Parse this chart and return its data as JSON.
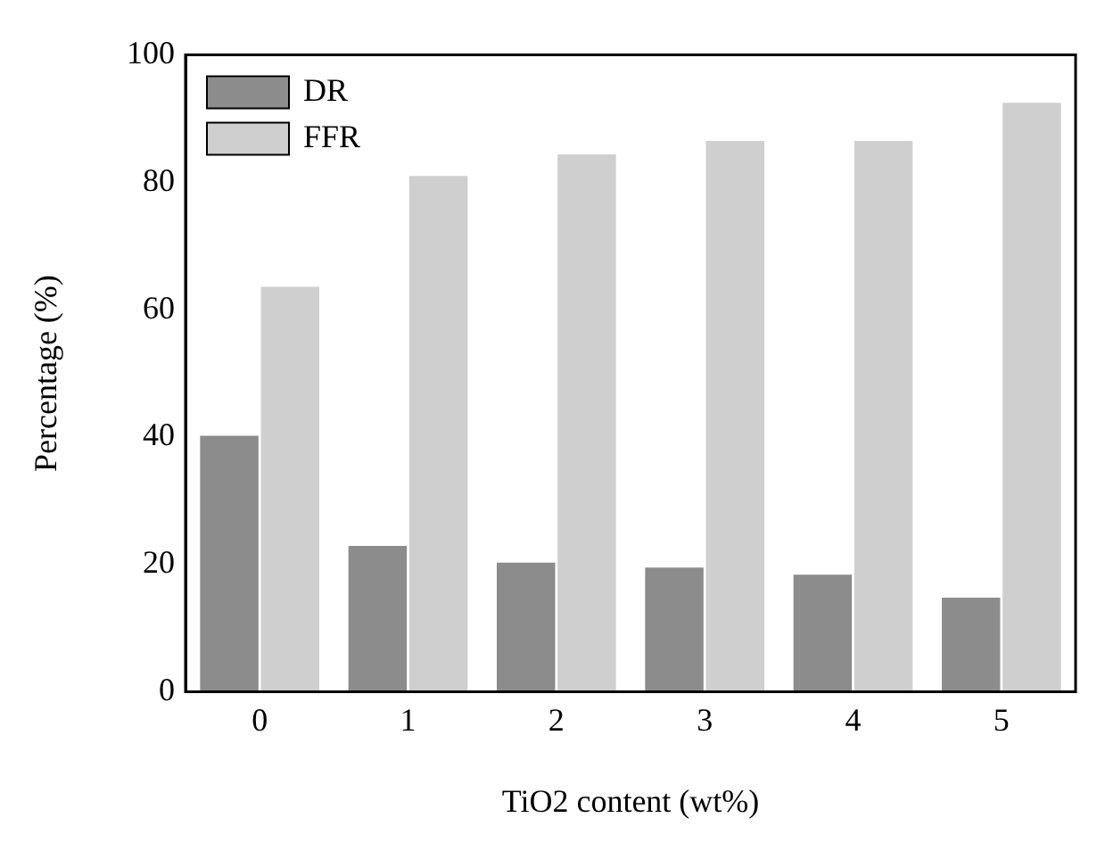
{
  "chart_data": {
    "type": "bar",
    "xlabel": "TiO2 content (wt%)",
    "ylabel": "Percentage (%)",
    "categories": [
      "0",
      "1",
      "2",
      "3",
      "4",
      "5"
    ],
    "series": [
      {
        "name": "DR",
        "color": "#8c8c8c",
        "values": [
          40.2,
          22.9,
          20.3,
          19.5,
          18.4,
          14.8
        ]
      },
      {
        "name": "FFR",
        "color": "#cfcfcf",
        "values": [
          63.6,
          81.0,
          84.4,
          86.5,
          86.5,
          92.5
        ]
      }
    ],
    "ylim": [
      0,
      100
    ],
    "yticks": [
      0,
      20,
      40,
      60,
      80,
      100
    ],
    "grid": false,
    "legend": "top left"
  }
}
